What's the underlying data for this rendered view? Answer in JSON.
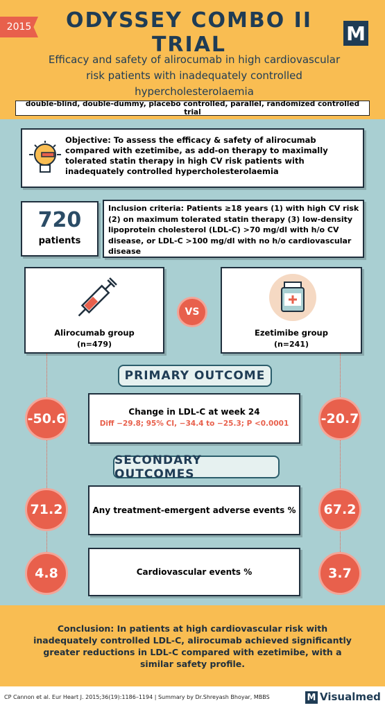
{
  "header": {
    "year": "2015",
    "title": "ODYSSEY COMBO II TRIAL",
    "logo": "M",
    "subtitle": "Efficacy and safety of alirocumab in high cardiovascular risk patients with inadequately controlled hypercholesterolaemia",
    "design": "double-blind, double-dummy, placebo controlled, parallel, randomized controlled trial"
  },
  "objective": "Objective: To assess the efficacy & safety of alirocumab compared with ezetimibe, as add-on therapy to maximally tolerated statin therapy in high CV risk patients with inadequately controlled hypercholesterolaemia",
  "patients": {
    "count": "720",
    "label": "patients"
  },
  "inclusion": "Inclusion criteria: Patients ≥18 years (1) with high CV risk (2) on maximum tolerated statin therapy (3) low-density lipoprotein cholesterol (LDL-C) >70 mg/dl with h/o CV disease, or LDL-C >100 mg/dl with no h/o cardiovascular disease",
  "groups": [
    {
      "name": "Alirocumab group",
      "n": "(n=479)"
    },
    {
      "name": "Ezetimibe group",
      "n": "(n=241)"
    }
  ],
  "vs": "VS",
  "primary": {
    "heading": "PRIMARY OUTCOME",
    "label": "Change in LDL-C at week 24",
    "detail": "Diff −29.8; 95% CI, −34.4 to −25.3; P <0.0001",
    "values": [
      "-50.6",
      "-20.7"
    ]
  },
  "secondary": {
    "heading": "SECONDARY OUTCOMES",
    "outcomes": [
      {
        "label": "Any treatment-emergent adverse events %",
        "values": [
          "71.2",
          "67.2"
        ]
      },
      {
        "label": "Cardiovascular events %",
        "values": [
          "4.8",
          "3.7"
        ]
      }
    ]
  },
  "conclusion": "Conclusion: In patients at high cardiovascular risk with inadequately controlled LDL-C, alirocumab achieved significantly greater reductions in LDL-C compared with ezetimibe, with a similar safety profile.",
  "footer": {
    "citation": "CP Cannon et al.  Eur Heart J. 2015;36(19):1186–1194 | Summary by Dr.Shreyash Bhoyar, MBBS",
    "logo": "M",
    "brand": "Visualmed"
  }
}
